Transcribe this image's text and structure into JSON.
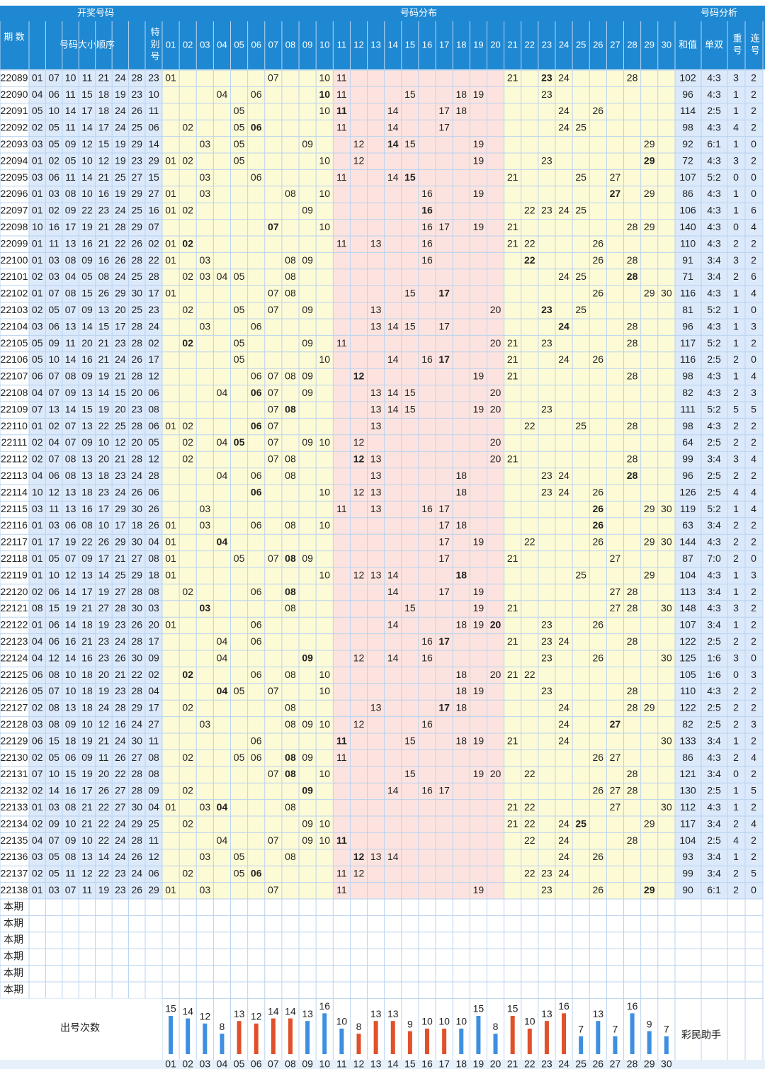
{
  "header": {
    "period": "期 数",
    "draw": "开奖号码",
    "sorted": "号码大小顺序",
    "special": "特别号",
    "distribution": "号码分布",
    "analysis": "号码分析",
    "sum": "和值",
    "odd_even": "单双",
    "repeat": "重号",
    "consecutive": "连号"
  },
  "columns": [
    "01",
    "02",
    "03",
    "04",
    "05",
    "06",
    "07",
    "08",
    "09",
    "10",
    "11",
    "12",
    "13",
    "14",
    "15",
    "16",
    "17",
    "18",
    "19",
    "20",
    "21",
    "22",
    "23",
    "24",
    "25",
    "26",
    "27",
    "28",
    "29",
    "30"
  ],
  "rows": [
    {
      "period": "22089",
      "numbers": [
        "01",
        "07",
        "10",
        "11",
        "21",
        "24",
        "28"
      ],
      "special": "23",
      "sum": 102,
      "odd_even": "4:3",
      "repeat": 3,
      "consecutive": 2
    },
    {
      "period": "22090",
      "numbers": [
        "04",
        "06",
        "11",
        "15",
        "18",
        "19",
        "23"
      ],
      "special": "10",
      "sum": 96,
      "odd_even": "4:3",
      "repeat": 1,
      "consecutive": 2
    },
    {
      "period": "22091",
      "numbers": [
        "05",
        "10",
        "14",
        "17",
        "18",
        "24",
        "26"
      ],
      "special": "11",
      "sum": 114,
      "odd_even": "2:5",
      "repeat": 1,
      "consecutive": 2
    },
    {
      "period": "22092",
      "numbers": [
        "02",
        "05",
        "11",
        "14",
        "17",
        "24",
        "25"
      ],
      "special": "06",
      "sum": 98,
      "odd_even": "4:3",
      "repeat": 4,
      "consecutive": 2
    },
    {
      "period": "22093",
      "numbers": [
        "03",
        "05",
        "09",
        "12",
        "15",
        "19",
        "29"
      ],
      "special": "14",
      "sum": 92,
      "odd_even": "6:1",
      "repeat": 1,
      "consecutive": 0
    },
    {
      "period": "22094",
      "numbers": [
        "01",
        "02",
        "05",
        "10",
        "12",
        "19",
        "23"
      ],
      "special": "29",
      "sum": 72,
      "odd_even": "4:3",
      "repeat": 3,
      "consecutive": 2
    },
    {
      "period": "22095",
      "numbers": [
        "03",
        "06",
        "11",
        "14",
        "21",
        "25",
        "27"
      ],
      "special": "15",
      "sum": 107,
      "odd_even": "5:2",
      "repeat": 0,
      "consecutive": 0
    },
    {
      "period": "22096",
      "numbers": [
        "01",
        "03",
        "08",
        "10",
        "16",
        "19",
        "29"
      ],
      "special": "27",
      "sum": 86,
      "odd_even": "4:3",
      "repeat": 1,
      "consecutive": 0
    },
    {
      "period": "22097",
      "numbers": [
        "01",
        "02",
        "09",
        "22",
        "23",
        "24",
        "25"
      ],
      "special": "16",
      "sum": 106,
      "odd_even": "4:3",
      "repeat": 1,
      "consecutive": 6
    },
    {
      "period": "22098",
      "numbers": [
        "10",
        "16",
        "17",
        "19",
        "21",
        "28",
        "29"
      ],
      "special": "07",
      "sum": 140,
      "odd_even": "4:3",
      "repeat": 0,
      "consecutive": 4
    },
    {
      "period": "22099",
      "numbers": [
        "01",
        "11",
        "13",
        "16",
        "21",
        "22",
        "26"
      ],
      "special": "02",
      "sum": 110,
      "odd_even": "4:3",
      "repeat": 2,
      "consecutive": 2
    },
    {
      "period": "22100",
      "numbers": [
        "01",
        "03",
        "08",
        "09",
        "16",
        "26",
        "28"
      ],
      "special": "22",
      "sum": 91,
      "odd_even": "3:4",
      "repeat": 3,
      "consecutive": 2
    },
    {
      "period": "22101",
      "numbers": [
        "02",
        "03",
        "04",
        "05",
        "08",
        "24",
        "25"
      ],
      "special": "28",
      "sum": 71,
      "odd_even": "3:4",
      "repeat": 2,
      "consecutive": 6
    },
    {
      "period": "22102",
      "numbers": [
        "01",
        "07",
        "08",
        "15",
        "26",
        "29",
        "30"
      ],
      "special": "17",
      "sum": 116,
      "odd_even": "4:3",
      "repeat": 1,
      "consecutive": 4
    },
    {
      "period": "22103",
      "numbers": [
        "02",
        "05",
        "07",
        "09",
        "13",
        "20",
        "25"
      ],
      "special": "23",
      "sum": 81,
      "odd_even": "5:2",
      "repeat": 1,
      "consecutive": 0
    },
    {
      "period": "22104",
      "numbers": [
        "03",
        "06",
        "13",
        "14",
        "15",
        "17",
        "28"
      ],
      "special": "24",
      "sum": 96,
      "odd_even": "4:3",
      "repeat": 1,
      "consecutive": 3
    },
    {
      "period": "22105",
      "numbers": [
        "05",
        "09",
        "11",
        "20",
        "21",
        "23",
        "28"
      ],
      "special": "02",
      "sum": 117,
      "odd_even": "5:2",
      "repeat": 1,
      "consecutive": 2
    },
    {
      "period": "22106",
      "numbers": [
        "05",
        "10",
        "14",
        "16",
        "21",
        "24",
        "26"
      ],
      "special": "17",
      "sum": 116,
      "odd_even": "2:5",
      "repeat": 2,
      "consecutive": 0
    },
    {
      "period": "22107",
      "numbers": [
        "06",
        "07",
        "08",
        "09",
        "19",
        "21",
        "28"
      ],
      "special": "12",
      "sum": 98,
      "odd_even": "4:3",
      "repeat": 1,
      "consecutive": 4
    },
    {
      "period": "22108",
      "numbers": [
        "04",
        "07",
        "09",
        "13",
        "14",
        "15",
        "20"
      ],
      "special": "06",
      "sum": 82,
      "odd_even": "4:3",
      "repeat": 2,
      "consecutive": 3
    },
    {
      "period": "22109",
      "numbers": [
        "07",
        "13",
        "14",
        "15",
        "19",
        "20",
        "23"
      ],
      "special": "08",
      "sum": 111,
      "odd_even": "5:2",
      "repeat": 5,
      "consecutive": 5
    },
    {
      "period": "22110",
      "numbers": [
        "01",
        "02",
        "07",
        "13",
        "22",
        "25",
        "28"
      ],
      "special": "06",
      "sum": 98,
      "odd_even": "4:3",
      "repeat": 2,
      "consecutive": 2
    },
    {
      "period": "22111",
      "numbers": [
        "02",
        "04",
        "07",
        "09",
        "10",
        "12",
        "20"
      ],
      "special": "05",
      "sum": 64,
      "odd_even": "2:5",
      "repeat": 2,
      "consecutive": 2
    },
    {
      "period": "22112",
      "numbers": [
        "02",
        "07",
        "08",
        "13",
        "20",
        "21",
        "28"
      ],
      "special": "12",
      "sum": 99,
      "odd_even": "3:4",
      "repeat": 3,
      "consecutive": 4
    },
    {
      "period": "22113",
      "numbers": [
        "04",
        "06",
        "08",
        "13",
        "18",
        "23",
        "24"
      ],
      "special": "28",
      "sum": 96,
      "odd_even": "2:5",
      "repeat": 2,
      "consecutive": 2
    },
    {
      "period": "22114",
      "numbers": [
        "10",
        "12",
        "13",
        "18",
        "23",
        "24",
        "26"
      ],
      "special": "06",
      "sum": 126,
      "odd_even": "2:5",
      "repeat": 4,
      "consecutive": 4
    },
    {
      "period": "22115",
      "numbers": [
        "03",
        "11",
        "13",
        "16",
        "17",
        "29",
        "30"
      ],
      "special": "26",
      "sum": 119,
      "odd_even": "5:2",
      "repeat": 1,
      "consecutive": 4
    },
    {
      "period": "22116",
      "numbers": [
        "01",
        "03",
        "06",
        "08",
        "10",
        "17",
        "18"
      ],
      "special": "26",
      "sum": 63,
      "odd_even": "3:4",
      "repeat": 2,
      "consecutive": 2
    },
    {
      "period": "22117",
      "numbers": [
        "01",
        "17",
        "19",
        "22",
        "26",
        "29",
        "30"
      ],
      "special": "04",
      "sum": 144,
      "odd_even": "4:3",
      "repeat": 2,
      "consecutive": 2
    },
    {
      "period": "22118",
      "numbers": [
        "01",
        "05",
        "07",
        "09",
        "17",
        "21",
        "27"
      ],
      "special": "08",
      "sum": 87,
      "odd_even": "7:0",
      "repeat": 2,
      "consecutive": 0
    },
    {
      "period": "22119",
      "numbers": [
        "01",
        "10",
        "12",
        "13",
        "14",
        "25",
        "29"
      ],
      "special": "18",
      "sum": 104,
      "odd_even": "4:3",
      "repeat": 1,
      "consecutive": 3
    },
    {
      "period": "22120",
      "numbers": [
        "02",
        "06",
        "14",
        "17",
        "19",
        "27",
        "28"
      ],
      "special": "08",
      "sum": 113,
      "odd_even": "3:4",
      "repeat": 1,
      "consecutive": 2
    },
    {
      "period": "22121",
      "numbers": [
        "08",
        "15",
        "19",
        "21",
        "27",
        "28",
        "30"
      ],
      "special": "03",
      "sum": 148,
      "odd_even": "4:3",
      "repeat": 3,
      "consecutive": 2
    },
    {
      "period": "22122",
      "numbers": [
        "01",
        "06",
        "14",
        "18",
        "19",
        "23",
        "26"
      ],
      "special": "20",
      "sum": 107,
      "odd_even": "3:4",
      "repeat": 1,
      "consecutive": 2
    },
    {
      "period": "22123",
      "numbers": [
        "04",
        "06",
        "16",
        "21",
        "23",
        "24",
        "28"
      ],
      "special": "17",
      "sum": 122,
      "odd_even": "2:5",
      "repeat": 2,
      "consecutive": 2
    },
    {
      "period": "22124",
      "numbers": [
        "04",
        "12",
        "14",
        "16",
        "23",
        "26",
        "30"
      ],
      "special": "09",
      "sum": 125,
      "odd_even": "1:6",
      "repeat": 3,
      "consecutive": 0
    },
    {
      "period": "22125",
      "numbers": [
        "06",
        "08",
        "10",
        "18",
        "20",
        "21",
        "22"
      ],
      "special": "02",
      "sum": 105,
      "odd_even": "1:6",
      "repeat": 0,
      "consecutive": 3
    },
    {
      "period": "22126",
      "numbers": [
        "05",
        "07",
        "10",
        "18",
        "19",
        "23",
        "28"
      ],
      "special": "04",
      "sum": 110,
      "odd_even": "4:3",
      "repeat": 2,
      "consecutive": 2
    },
    {
      "period": "22127",
      "numbers": [
        "02",
        "08",
        "13",
        "18",
        "24",
        "28",
        "29"
      ],
      "special": "17",
      "sum": 122,
      "odd_even": "2:5",
      "repeat": 2,
      "consecutive": 2
    },
    {
      "period": "22128",
      "numbers": [
        "03",
        "08",
        "09",
        "10",
        "12",
        "16",
        "24"
      ],
      "special": "27",
      "sum": 82,
      "odd_even": "2:5",
      "repeat": 2,
      "consecutive": 3
    },
    {
      "period": "22129",
      "numbers": [
        "06",
        "15",
        "18",
        "19",
        "21",
        "24",
        "30"
      ],
      "special": "11",
      "sum": 133,
      "odd_even": "3:4",
      "repeat": 1,
      "consecutive": 2
    },
    {
      "period": "22130",
      "numbers": [
        "02",
        "05",
        "06",
        "09",
        "11",
        "26",
        "27"
      ],
      "special": "08",
      "sum": 86,
      "odd_even": "4:3",
      "repeat": 2,
      "consecutive": 4
    },
    {
      "period": "22131",
      "numbers": [
        "07",
        "10",
        "15",
        "19",
        "20",
        "22",
        "28"
      ],
      "special": "08",
      "sum": 121,
      "odd_even": "3:4",
      "repeat": 0,
      "consecutive": 2
    },
    {
      "period": "22132",
      "numbers": [
        "02",
        "14",
        "16",
        "17",
        "26",
        "27",
        "28"
      ],
      "special": "09",
      "sum": 130,
      "odd_even": "2:5",
      "repeat": 1,
      "consecutive": 5
    },
    {
      "period": "22133",
      "numbers": [
        "01",
        "03",
        "08",
        "21",
        "22",
        "27",
        "30"
      ],
      "special": "04",
      "sum": 112,
      "odd_even": "4:3",
      "repeat": 1,
      "consecutive": 2
    },
    {
      "period": "22134",
      "numbers": [
        "02",
        "09",
        "10",
        "21",
        "22",
        "24",
        "29"
      ],
      "special": "25",
      "sum": 117,
      "odd_even": "3:4",
      "repeat": 2,
      "consecutive": 4
    },
    {
      "period": "22135",
      "numbers": [
        "04",
        "07",
        "09",
        "10",
        "22",
        "24",
        "28"
      ],
      "special": "11",
      "sum": 104,
      "odd_even": "2:5",
      "repeat": 4,
      "consecutive": 2
    },
    {
      "period": "22136",
      "numbers": [
        "03",
        "05",
        "08",
        "13",
        "14",
        "24",
        "26"
      ],
      "special": "12",
      "sum": 93,
      "odd_even": "3:4",
      "repeat": 1,
      "consecutive": 2
    },
    {
      "period": "22137",
      "numbers": [
        "02",
        "05",
        "11",
        "12",
        "22",
        "23",
        "24"
      ],
      "special": "06",
      "sum": 99,
      "odd_even": "3:4",
      "repeat": 2,
      "consecutive": 5
    },
    {
      "period": "22138",
      "numbers": [
        "01",
        "03",
        "07",
        "11",
        "19",
        "23",
        "26"
      ],
      "special": "29",
      "sum": 90,
      "odd_even": "6:1",
      "repeat": 2,
      "consecutive": 0
    }
  ],
  "pending_rows": [
    "本期",
    "本期",
    "本期",
    "本期",
    "本期",
    "本期"
  ],
  "occurrence_chart": {
    "label": "出号次数",
    "values": [
      15,
      14,
      12,
      8,
      13,
      12,
      14,
      14,
      13,
      16,
      10,
      8,
      13,
      13,
      9,
      10,
      10,
      10,
      15,
      8,
      15,
      10,
      13,
      16,
      7,
      13,
      7,
      16,
      9,
      7
    ],
    "colors": [
      "#3d8fe0",
      "#3d8fe0",
      "#3d8fe0",
      "#3d8fe0",
      "#e0502a",
      "#e0502a",
      "#e0502a",
      "#e0502a",
      "#3d8fe0",
      "#3d8fe0",
      "#3d8fe0",
      "#e0502a",
      "#e0502a",
      "#e0502a",
      "#e0502a",
      "#e0502a",
      "#e0502a",
      "#3d8fe0",
      "#3d8fe0",
      "#3d8fe0",
      "#e0502a",
      "#e0502a",
      "#e0502a",
      "#e0502a",
      "#3d8fe0",
      "#3d8fe0",
      "#3d8fe0",
      "#3d8fe0",
      "#3d8fe0",
      "#3d8fe0"
    ]
  },
  "watermark": "彩民助手"
}
